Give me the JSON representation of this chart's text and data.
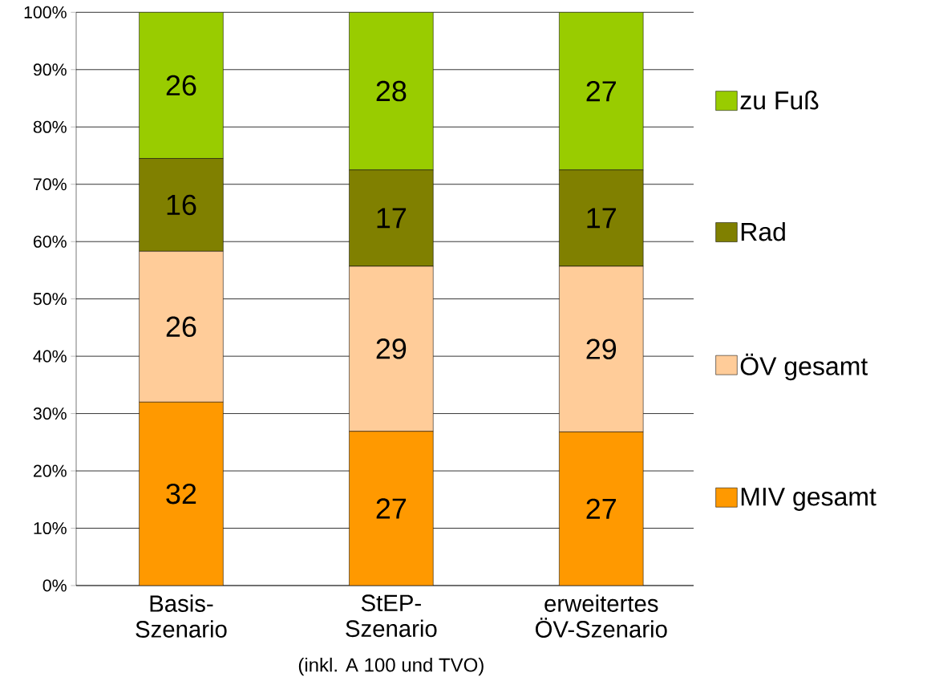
{
  "chart_data": {
    "type": "bar",
    "stacked": true,
    "categories": [
      "Basis-Szenario",
      "StEP-Szenario",
      "erweitertes ÖV-Szenario"
    ],
    "series": [
      {
        "name": "MIV gesamt",
        "color": "#ff9900",
        "values": [
          32,
          26.9,
          26.8
        ],
        "value_labels": [
          "32",
          "27",
          "27"
        ]
      },
      {
        "name": "ÖV gesamt",
        "color": "#ffcc99",
        "values": [
          26.3,
          28.8,
          28.9
        ],
        "value_labels": [
          "26",
          "29",
          "29"
        ]
      },
      {
        "name": "Rad",
        "color": "#808000",
        "values": [
          16.2,
          16.8,
          16.8
        ],
        "value_labels": [
          "16",
          "17",
          "17"
        ]
      },
      {
        "name": "zu Fuß",
        "color": "#99cc00",
        "values": [
          25.5,
          27.5,
          27.5
        ],
        "value_labels": [
          "26",
          "28",
          "27"
        ]
      }
    ],
    "ylim": [
      0,
      100
    ],
    "yticks": [
      {
        "value": 0,
        "label": "0%"
      },
      {
        "value": 10,
        "label": "10%"
      },
      {
        "value": 20,
        "label": "20%"
      },
      {
        "value": 30,
        "label": "30%"
      },
      {
        "value": 40,
        "label": "40%"
      },
      {
        "value": 50,
        "label": "50%"
      },
      {
        "value": 60,
        "label": "60%"
      },
      {
        "value": 70,
        "label": "70%"
      },
      {
        "value": 80,
        "label": "80%"
      },
      {
        "value": 90,
        "label": "90%"
      },
      {
        "value": 100,
        "label": "100%"
      }
    ],
    "grid": "y",
    "legend": "right",
    "annotations": [
      "(inkl. A 100 und TVO)"
    ]
  }
}
